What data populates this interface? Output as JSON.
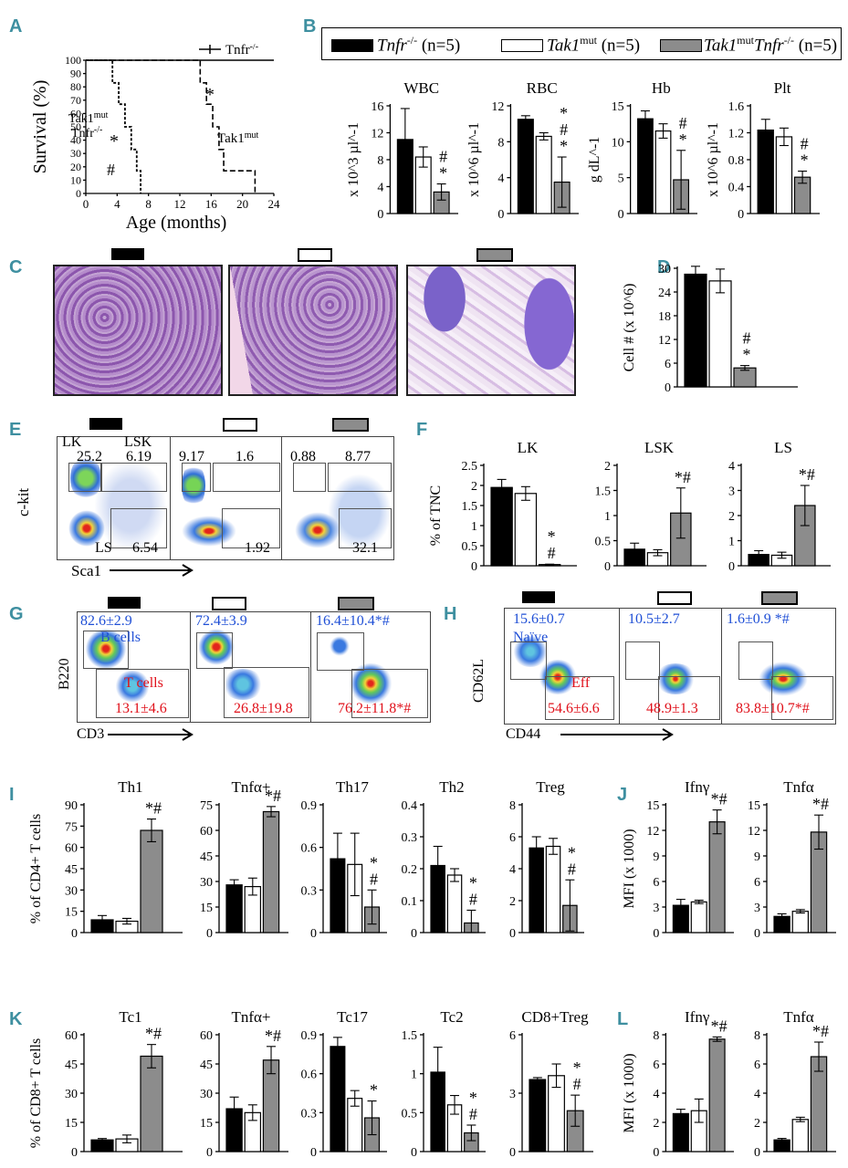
{
  "panels": {
    "A": "A",
    "B": "B",
    "C": "C",
    "D": "D",
    "E": "E",
    "F": "F",
    "G": "G",
    "H": "H",
    "I": "I",
    "J": "J",
    "K": "K",
    "L": "L"
  },
  "colors": {
    "tnfr": "#000000",
    "tak1": "#ffffff",
    "double": "#8c8c8c",
    "blue": "#1f4fd6",
    "red": "#e0101a",
    "teal": "#3e8fa0"
  },
  "legend": {
    "entries": [
      {
        "name": "Tnfr-/- (n=5)",
        "text": "Tnfr",
        "sup": "-/-",
        "suffix": " (n=5)"
      },
      {
        "name": "Tak1mut (n=5)",
        "text": "Tak1",
        "sup": "mut",
        "suffix": " (n=5)"
      },
      {
        "name": "Tak1mutTnfr-/- (n=5)",
        "text": "Tak1",
        "sup": "mut",
        "text2": "Tnfr",
        "sup2": "-/-",
        "suffix": " (n=5)"
      }
    ]
  },
  "panelA": {
    "xlabel": "Age (months)",
    "ylabel": "Survival (%)",
    "xticks": [
      "0",
      "4",
      "8",
      "12",
      "16",
      "20",
      "24"
    ],
    "yticks": [
      "0",
      "10",
      "20",
      "30",
      "40",
      "50",
      "60",
      "70",
      "80",
      "90",
      "100"
    ],
    "labels": {
      "tnfr": "Tnfr",
      "tnfr_sup": "-/-",
      "tak1": "Tak1",
      "tak1_sup": "mut",
      "dbl1": "Tak1",
      "dbl1_sup": "mut",
      "dbl2": "Tnfr",
      "dbl2_sup": "-/-",
      "star": "*",
      "hash": "#"
    }
  },
  "chart_data": [
    {
      "id": "A",
      "type": "line",
      "title": "Survival",
      "xlabel": "Age (months)",
      "ylabel": "Survival (%)",
      "xlim": [
        0,
        24
      ],
      "ylim": [
        0,
        100
      ],
      "series": [
        {
          "name": "Tnfr-/-",
          "x": [
            0,
            24
          ],
          "y": [
            100,
            100
          ]
        },
        {
          "name": "Tak1mut",
          "x": [
            0,
            14.6,
            14.6,
            15.4,
            15.4,
            16.2,
            16.2,
            17,
            17,
            17.6,
            17.6,
            21.6,
            21.6
          ],
          "y": [
            100,
            100,
            83,
            83,
            67,
            67,
            50,
            50,
            33,
            33,
            17,
            17,
            0
          ]
        },
        {
          "name": "Tak1mutTnfr-/-",
          "x": [
            0,
            3.4,
            3.4,
            4.2,
            4.2,
            5,
            5,
            5.8,
            5.8,
            6.5,
            6.5,
            7,
            7
          ],
          "y": [
            100,
            100,
            83,
            83,
            67,
            67,
            50,
            50,
            33,
            33,
            17,
            17,
            0
          ]
        }
      ]
    },
    {
      "id": "B-WBC",
      "type": "bar",
      "title": "WBC",
      "ylabel": "x 10^3 µl^-1",
      "ylim": [
        0,
        16
      ],
      "yticks": [
        "0",
        "4",
        "8",
        "12",
        "16"
      ],
      "values": [
        11,
        8.4,
        3.2
      ],
      "errors": [
        4.6,
        1.5,
        1.2
      ],
      "annotations": [
        "#",
        "*"
      ]
    },
    {
      "id": "B-RBC",
      "type": "bar",
      "title": "RBC",
      "ylabel": "x 10^6 µl^-1",
      "ylim": [
        0,
        12
      ],
      "yticks": [
        "0",
        "4",
        "8",
        "12"
      ],
      "values": [
        10.5,
        8.6,
        3.5
      ],
      "errors": [
        0.4,
        0.4,
        2.8
      ],
      "annotations": [
        "*",
        "#",
        "*"
      ]
    },
    {
      "id": "B-Hb",
      "type": "bar",
      "title": "Hb",
      "ylabel": "g dL^-1",
      "ylim": [
        0,
        15
      ],
      "yticks": [
        "0",
        "5",
        "10",
        "15"
      ],
      "values": [
        13.2,
        11.5,
        4.7
      ],
      "errors": [
        1.1,
        1.0,
        4.1
      ],
      "annotations": [
        "#",
        "*"
      ]
    },
    {
      "id": "B-Plt",
      "type": "bar",
      "title": "Plt",
      "ylabel": "x 10^6 µl^-1",
      "ylim": [
        0,
        1.6
      ],
      "yticks": [
        "0",
        "0.4",
        "0.8",
        "1.2",
        "1.6"
      ],
      "values": [
        1.24,
        1.14,
        0.54
      ],
      "errors": [
        0.16,
        0.13,
        0.09
      ],
      "annotations": [
        "#",
        "*"
      ]
    },
    {
      "id": "D",
      "type": "bar",
      "title": "",
      "ylabel": "Cell # (x 10^6)",
      "ylim": [
        0,
        30
      ],
      "yticks": [
        "0",
        "6",
        "12",
        "18",
        "24",
        "30"
      ],
      "values": [
        28.5,
        26.8,
        4.8
      ],
      "errors": [
        2,
        3,
        0.6
      ],
      "annotations": [
        "#",
        "*"
      ]
    },
    {
      "id": "F-LK",
      "type": "bar",
      "title": "LK",
      "ylabel": "% of TNC",
      "ylim": [
        0,
        2.5
      ],
      "yticks": [
        "0",
        "0.5",
        "1",
        "1.5",
        "2",
        "2.5"
      ],
      "values": [
        1.95,
        1.8,
        0.03
      ],
      "errors": [
        0.2,
        0.17,
        0.01
      ],
      "annotations": [
        "*",
        "#"
      ]
    },
    {
      "id": "F-LSK",
      "type": "bar",
      "title": "LSK",
      "ylabel": "",
      "ylim": [
        0,
        2
      ],
      "yticks": [
        "0",
        "0.5",
        "1",
        "1.5",
        "2"
      ],
      "values": [
        0.33,
        0.26,
        1.05
      ],
      "errors": [
        0.12,
        0.06,
        0.5
      ],
      "annotations": [
        "*#"
      ]
    },
    {
      "id": "F-LS",
      "type": "bar",
      "title": "LS",
      "ylabel": "",
      "ylim": [
        0,
        4
      ],
      "yticks": [
        "0",
        "1",
        "2",
        "3",
        "4"
      ],
      "values": [
        0.45,
        0.42,
        2.4
      ],
      "errors": [
        0.15,
        0.12,
        0.8
      ],
      "annotations": [
        "*#"
      ]
    },
    {
      "id": "I-Th1",
      "type": "bar",
      "title": "Th1",
      "ylabel": "% of CD4+ T cells",
      "ylim": [
        0,
        90
      ],
      "yticks": [
        "0",
        "15",
        "30",
        "45",
        "60",
        "75",
        "90"
      ],
      "values": [
        9,
        8,
        72
      ],
      "errors": [
        3,
        2,
        8
      ],
      "annotations": [
        "*#"
      ]
    },
    {
      "id": "I-Tnfa",
      "type": "bar",
      "title": "Tnfα+",
      "ylabel": "",
      "ylim": [
        0,
        75
      ],
      "yticks": [
        "0",
        "15",
        "30",
        "45",
        "60",
        "75"
      ],
      "values": [
        28,
        27,
        71
      ],
      "errors": [
        3,
        5,
        3
      ],
      "annotations": [
        "*#"
      ]
    },
    {
      "id": "I-Th17",
      "type": "bar",
      "title": "Th17",
      "ylabel": "",
      "ylim": [
        0,
        0.9
      ],
      "yticks": [
        "0",
        "0.3",
        "0.6",
        "0.9"
      ],
      "values": [
        0.52,
        0.48,
        0.18
      ],
      "errors": [
        0.18,
        0.22,
        0.12
      ],
      "annotations": [
        "*",
        "#"
      ]
    },
    {
      "id": "I-Th2",
      "type": "bar",
      "title": "Th2",
      "ylabel": "",
      "ylim": [
        0,
        0.4
      ],
      "yticks": [
        "0",
        "0.1",
        "0.2",
        "0.3",
        "0.4"
      ],
      "values": [
        0.21,
        0.18,
        0.03
      ],
      "errors": [
        0.06,
        0.02,
        0.04
      ],
      "annotations": [
        "*",
        "#"
      ]
    },
    {
      "id": "I-Treg",
      "type": "bar",
      "title": "Treg",
      "ylabel": "",
      "ylim": [
        0,
        8
      ],
      "yticks": [
        "0",
        "2",
        "4",
        "6",
        "8"
      ],
      "values": [
        5.3,
        5.4,
        1.7
      ],
      "errors": [
        0.7,
        0.5,
        1.6
      ],
      "annotations": [
        "*",
        "#"
      ]
    },
    {
      "id": "J-Ifng",
      "type": "bar",
      "title": "Ifnγ",
      "ylabel": "MFI (x 1000)",
      "ylim": [
        0,
        15
      ],
      "yticks": [
        "0",
        "3",
        "6",
        "9",
        "12",
        "15"
      ],
      "values": [
        3.2,
        3.6,
        13
      ],
      "errors": [
        0.7,
        0.2,
        1.4
      ],
      "annotations": [
        "*#"
      ]
    },
    {
      "id": "J-Tnfa",
      "type": "bar",
      "title": "Tnfα",
      "ylabel": "",
      "ylim": [
        0,
        15
      ],
      "yticks": [
        "0",
        "3",
        "6",
        "9",
        "12",
        "15"
      ],
      "values": [
        1.9,
        2.5,
        11.8
      ],
      "errors": [
        0.3,
        0.2,
        2
      ],
      "annotations": [
        "*#"
      ]
    },
    {
      "id": "K-Tc1",
      "type": "bar",
      "title": "Tc1",
      "ylabel": "% of CD8+ T cells",
      "ylim": [
        0,
        60
      ],
      "yticks": [
        "0",
        "15",
        "30",
        "45",
        "60"
      ],
      "values": [
        6,
        6.5,
        49
      ],
      "errors": [
        0.7,
        2,
        6
      ],
      "annotations": [
        "*#"
      ]
    },
    {
      "id": "K-Tnfa",
      "type": "bar",
      "title": "Tnfα+",
      "ylabel": "",
      "ylim": [
        0,
        60
      ],
      "yticks": [
        "0",
        "15",
        "30",
        "45",
        "60"
      ],
      "values": [
        22,
        20,
        47
      ],
      "errors": [
        6,
        4,
        7
      ],
      "annotations": [
        "*#"
      ]
    },
    {
      "id": "K-Tc17",
      "type": "bar",
      "title": "Tc17",
      "ylabel": "",
      "ylim": [
        0,
        0.9
      ],
      "yticks": [
        "0",
        "0.3",
        "0.6",
        "0.9"
      ],
      "values": [
        0.81,
        0.41,
        0.26
      ],
      "errors": [
        0.07,
        0.06,
        0.13
      ],
      "annotations": [
        "*"
      ]
    },
    {
      "id": "K-Tc2",
      "type": "bar",
      "title": "Tc2",
      "ylabel": "",
      "ylim": [
        0,
        1.5
      ],
      "yticks": [
        "0",
        "0.5",
        "1",
        "1.5"
      ],
      "values": [
        1.02,
        0.6,
        0.24
      ],
      "errors": [
        0.32,
        0.12,
        0.1
      ],
      "annotations": [
        "*",
        "#"
      ]
    },
    {
      "id": "K-CD8Treg",
      "type": "bar",
      "title": "CD8+Treg",
      "ylabel": "",
      "ylim": [
        0,
        6
      ],
      "yticks": [
        "0",
        "3",
        "6"
      ],
      "values": [
        3.7,
        3.9,
        2.1
      ],
      "errors": [
        0.1,
        0.6,
        0.8
      ],
      "annotations": [
        "*",
        "#"
      ]
    },
    {
      "id": "L-Ifng",
      "type": "bar",
      "title": "Ifnγ",
      "ylabel": "MFI (x 1000)",
      "ylim": [
        0,
        8
      ],
      "yticks": [
        "0",
        "2",
        "4",
        "6",
        "8"
      ],
      "values": [
        2.6,
        2.8,
        7.7
      ],
      "errors": [
        0.3,
        0.8,
        0.15
      ],
      "annotations": [
        "*#"
      ]
    },
    {
      "id": "L-Tnfa",
      "type": "bar",
      "title": "Tnfα",
      "ylabel": "",
      "ylim": [
        0,
        8
      ],
      "yticks": [
        "0",
        "2",
        "4",
        "6",
        "8"
      ],
      "values": [
        0.8,
        2.2,
        6.5
      ],
      "errors": [
        0.1,
        0.15,
        1
      ],
      "annotations": [
        "*#"
      ]
    }
  ],
  "panelE": {
    "ylabel": "c-kit",
    "xlabel": "Sca1",
    "plots": [
      {
        "lk": "25.2",
        "lsk": "6.19",
        "ls": "6.54",
        "lk_label": "LK",
        "lsk_label": "LSK",
        "ls_label": "LS"
      },
      {
        "lk": "9.17",
        "lsk": "1.6",
        "ls": "1.92"
      },
      {
        "lk": "0.88",
        "lsk": "8.77",
        "ls": "32.1"
      }
    ]
  },
  "panelG": {
    "ylabel": "B220",
    "xlabel": "CD3",
    "plots": [
      {
        "b": "82.6±2.9",
        "t": "13.1±4.6",
        "b_label": "B cells",
        "t_label": "T cells"
      },
      {
        "b": "72.4±3.9",
        "t": "26.8±19.8"
      },
      {
        "b": "16.4±10.4*#",
        "t": "76.2±11.8*#"
      }
    ]
  },
  "panelH": {
    "ylabel": "CD62L",
    "xlabel": "CD44",
    "plots": [
      {
        "n": "15.6±0.7",
        "e": "54.6±6.6",
        "n_label": "Naïve",
        "e_label": "Eff"
      },
      {
        "n": "10.5±2.7",
        "e": "48.9±1.3"
      },
      {
        "n": "1.6±0.9 *#",
        "e": "83.8±10.7*#"
      }
    ]
  }
}
